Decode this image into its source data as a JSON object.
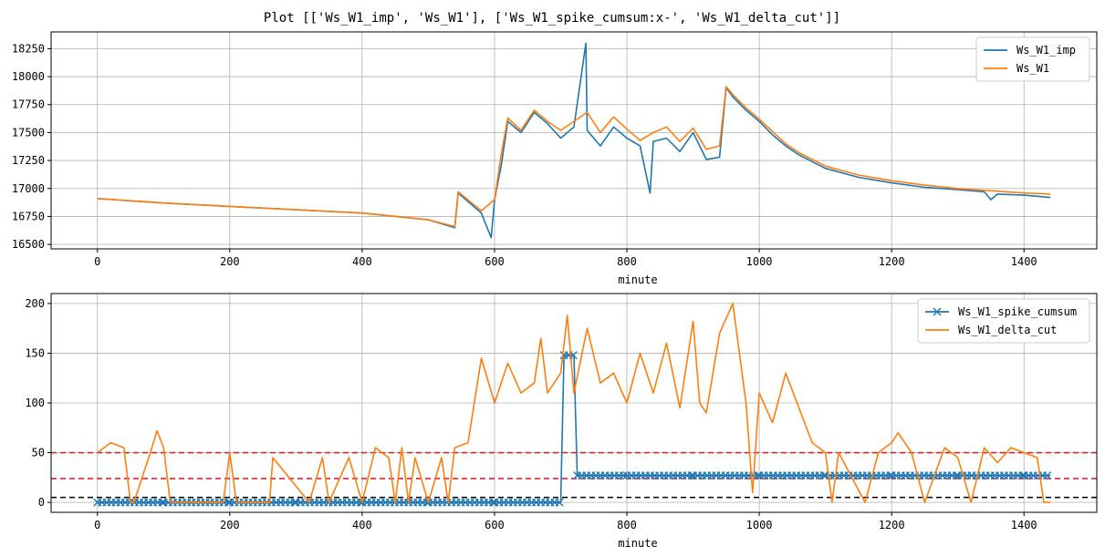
{
  "figure": {
    "title": "Plot [['Ws_W1_imp', 'Ws_W1'], ['Ws_W1_spike_cumsum:x-', 'Ws_W1_delta_cut']]"
  },
  "chart_data": [
    {
      "type": "line",
      "xlabel": "minute",
      "ylabel": "",
      "xlim": [
        -70,
        1510
      ],
      "ylim": [
        16460,
        18400
      ],
      "x_ticks": [
        0,
        200,
        400,
        600,
        800,
        1000,
        1200,
        1400
      ],
      "y_ticks": [
        16500,
        16750,
        17000,
        17250,
        17500,
        17750,
        18000,
        18250
      ],
      "grid": true,
      "legend_position": "top-right",
      "series": [
        {
          "name": "Ws_W1_imp",
          "color": "#1f77b4",
          "x": [
            0,
            100,
            200,
            300,
            400,
            500,
            540,
            545,
            580,
            595,
            600,
            610,
            620,
            640,
            660,
            680,
            700,
            720,
            738,
            740,
            760,
            780,
            800,
            820,
            835,
            840,
            860,
            880,
            900,
            920,
            940,
            950,
            960,
            980,
            1000,
            1020,
            1040,
            1060,
            1100,
            1150,
            1200,
            1250,
            1300,
            1340,
            1350,
            1360,
            1400,
            1440
          ],
          "y": [
            16910,
            16870,
            16840,
            16810,
            16780,
            16720,
            16650,
            16960,
            16780,
            16560,
            16900,
            17200,
            17600,
            17500,
            17680,
            17580,
            17450,
            17550,
            18300,
            17520,
            17380,
            17550,
            17450,
            17380,
            16960,
            17420,
            17450,
            17330,
            17500,
            17260,
            17280,
            17900,
            17820,
            17700,
            17600,
            17480,
            17380,
            17300,
            17180,
            17100,
            17050,
            17010,
            16990,
            16970,
            16900,
            16950,
            16940,
            16920
          ]
        },
        {
          "name": "Ws_W1",
          "color": "#ff7f0e",
          "x": [
            0,
            100,
            200,
            300,
            400,
            500,
            540,
            545,
            580,
            600,
            610,
            620,
            640,
            660,
            680,
            700,
            720,
            740,
            760,
            780,
            800,
            820,
            840,
            860,
            880,
            900,
            920,
            940,
            950,
            960,
            980,
            1000,
            1020,
            1040,
            1060,
            1100,
            1150,
            1200,
            1250,
            1300,
            1350,
            1400,
            1440
          ],
          "y": [
            16910,
            16870,
            16840,
            16810,
            16780,
            16720,
            16660,
            16970,
            16800,
            16900,
            17300,
            17630,
            17520,
            17700,
            17600,
            17520,
            17600,
            17680,
            17500,
            17640,
            17530,
            17430,
            17500,
            17550,
            17420,
            17540,
            17350,
            17380,
            17910,
            17840,
            17720,
            17620,
            17510,
            17400,
            17320,
            17200,
            17120,
            17070,
            17030,
            17000,
            16980,
            16960,
            16950
          ]
        }
      ]
    },
    {
      "type": "line",
      "xlabel": "minute",
      "ylabel": "",
      "xlim": [
        -70,
        1510
      ],
      "ylim": [
        -10,
        210
      ],
      "x_ticks": [
        0,
        200,
        400,
        600,
        800,
        1000,
        1200,
        1400
      ],
      "y_ticks": [
        0,
        50,
        100,
        150,
        200
      ],
      "grid": true,
      "legend_position": "top-right",
      "series": [
        {
          "name": "Ws_W1_spike_cumsum",
          "color": "#1f77b4",
          "marker": "x",
          "x": [
            0,
            100,
            200,
            300,
            400,
            500,
            600,
            700,
            705,
            720,
            725,
            800,
            900,
            1000,
            1100,
            1200,
            1300,
            1400,
            1440
          ],
          "y": [
            0,
            0,
            0,
            0,
            0,
            0,
            0,
            0,
            148,
            148,
            27,
            27,
            27,
            27,
            27,
            27,
            27,
            27,
            27
          ]
        },
        {
          "name": "Ws_W1_delta_cut",
          "color": "#ff7f0e",
          "x": [
            0,
            20,
            40,
            50,
            55,
            80,
            90,
            100,
            110,
            120,
            150,
            190,
            200,
            210,
            260,
            265,
            320,
            340,
            350,
            380,
            400,
            420,
            440,
            450,
            460,
            470,
            480,
            500,
            520,
            530,
            540,
            560,
            580,
            600,
            620,
            640,
            660,
            670,
            680,
            700,
            710,
            720,
            740,
            760,
            780,
            800,
            820,
            840,
            860,
            880,
            900,
            910,
            920,
            940,
            960,
            980,
            990,
            1000,
            1020,
            1040,
            1060,
            1080,
            1100,
            1110,
            1120,
            1160,
            1180,
            1200,
            1210,
            1230,
            1250,
            1280,
            1300,
            1320,
            1340,
            1360,
            1380,
            1400,
            1420,
            1430,
            1440
          ],
          "y": [
            50,
            60,
            55,
            0,
            0,
            50,
            72,
            55,
            0,
            0,
            0,
            0,
            50,
            0,
            0,
            45,
            0,
            45,
            0,
            45,
            0,
            55,
            45,
            0,
            55,
            0,
            45,
            0,
            45,
            0,
            55,
            60,
            145,
            100,
            140,
            110,
            120,
            165,
            110,
            130,
            188,
            110,
            175,
            120,
            130,
            100,
            150,
            110,
            160,
            95,
            182,
            100,
            90,
            170,
            200,
            100,
            10,
            110,
            80,
            130,
            95,
            60,
            50,
            0,
            50,
            0,
            50,
            60,
            70,
            50,
            0,
            55,
            45,
            0,
            55,
            40,
            55,
            50,
            45,
            0,
            0
          ]
        }
      ],
      "reference_lines": [
        {
          "y": 50,
          "color": "#d62728",
          "style": "dashed"
        },
        {
          "y": 24,
          "color": "#d62728",
          "style": "dashed"
        },
        {
          "y": 5,
          "color": "#000000",
          "style": "dashed"
        }
      ]
    }
  ]
}
